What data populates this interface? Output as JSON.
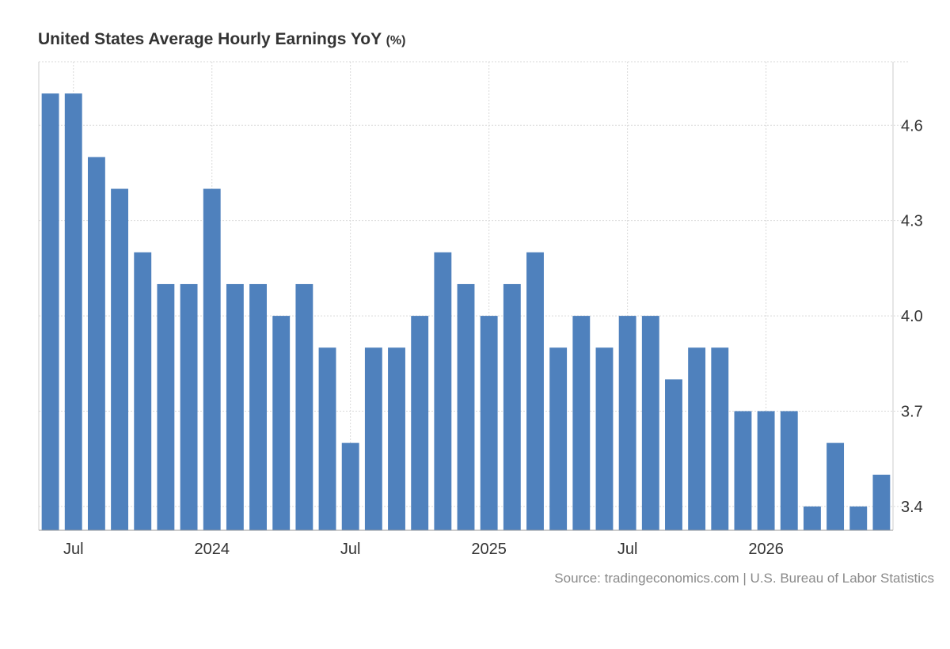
{
  "chart_data": {
    "type": "bar",
    "title": "United States Average Hourly Earnings YoY",
    "unit": "(%)",
    "xlabel": "",
    "ylabel": "",
    "ylim": [
      3.325,
      4.8
    ],
    "y_ticks": [
      "4.6",
      "4.3",
      "4.0",
      "3.7",
      "3.4"
    ],
    "y_tick_values": [
      4.6,
      4.3,
      4.0,
      3.7,
      3.4
    ],
    "x_tick_labels": [
      {
        "label": "Jul",
        "index": 1
      },
      {
        "label": "2024",
        "index": 7
      },
      {
        "label": "Jul",
        "index": 13
      },
      {
        "label": "2025",
        "index": 19
      },
      {
        "label": "Jul",
        "index": 25
      },
      {
        "label": "2026",
        "index": 31
      }
    ],
    "x_axis_position": "bottom",
    "y_axis_position": "right",
    "grid": true,
    "legend": "none",
    "color": "#4f81bd",
    "categories": [
      "Jun 2023",
      "Jul 2023",
      "Aug 2023",
      "Sep 2023",
      "Oct 2023",
      "Nov 2023",
      "Dec 2023",
      "Jan 2024",
      "Feb 2024",
      "Mar 2024",
      "Apr 2024",
      "May 2024",
      "Jun 2024",
      "Jul 2024",
      "Aug 2024",
      "Sep 2024",
      "Oct 2024",
      "Nov 2024",
      "Dec 2024",
      "Jan 2025",
      "Feb 2025",
      "Mar 2025",
      "Apr 2025",
      "May 2025",
      "Jun 2025",
      "Jul 2025",
      "Aug 2025",
      "Sep 2025",
      "Oct 2025",
      "Nov 2025",
      "Dec 2025",
      "Jan 2026",
      "Feb 2026",
      "Mar 2026",
      "Apr 2026",
      "May 2026",
      "Jun 2026"
    ],
    "values": [
      4.7,
      4.7,
      4.5,
      4.4,
      4.2,
      4.1,
      4.1,
      4.4,
      4.1,
      4.1,
      4.0,
      4.1,
      3.9,
      3.6,
      3.9,
      3.9,
      4.0,
      4.2,
      4.1,
      4.0,
      4.1,
      4.2,
      3.9,
      4.0,
      3.9,
      4.0,
      4.0,
      3.8,
      3.9,
      3.9,
      3.7,
      3.7,
      3.7,
      3.4,
      3.6,
      3.4,
      3.5
    ]
  },
  "source_text": "Source: tradingeconomics.com | U.S. Bureau of Labor Statistics"
}
